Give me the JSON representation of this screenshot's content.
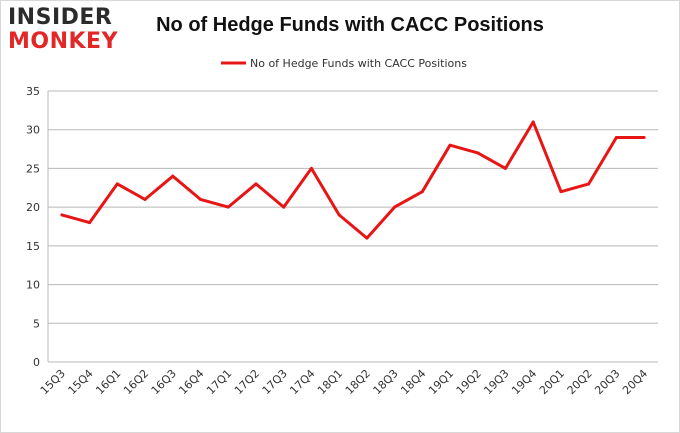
{
  "brand": {
    "line1": "INSIDER",
    "line2": "MONKEY"
  },
  "colors": {
    "series": "#e81515",
    "grid": "#b8b8b8",
    "brand_red": "#e32626",
    "brand_dark": "#2b2b2b"
  },
  "chart_data": {
    "type": "line",
    "title": "No of Hedge Funds with CACC Positions",
    "xlabel": "",
    "ylabel": "",
    "categories": [
      "15Q3",
      "15Q4",
      "16Q1",
      "16Q2",
      "16Q3",
      "16Q4",
      "17Q1",
      "17Q2",
      "17Q3",
      "17Q4",
      "18Q1",
      "18Q2",
      "18Q3",
      "18Q4",
      "19Q1",
      "19Q2",
      "19Q3",
      "19Q4",
      "20Q1",
      "20Q2",
      "20Q3",
      "20Q4"
    ],
    "series": [
      {
        "name": "No of Hedge Funds with CACC Positions",
        "values": [
          19,
          18,
          23,
          21,
          24,
          21,
          20,
          23,
          20,
          25,
          19,
          16,
          20,
          22,
          28,
          27,
          25,
          31,
          22,
          23,
          29,
          29
        ]
      }
    ],
    "ylim": [
      0,
      35
    ],
    "yticks": [
      0,
      5,
      10,
      15,
      20,
      25,
      30,
      35
    ],
    "grid": "horizontal",
    "legend": "top-center"
  }
}
